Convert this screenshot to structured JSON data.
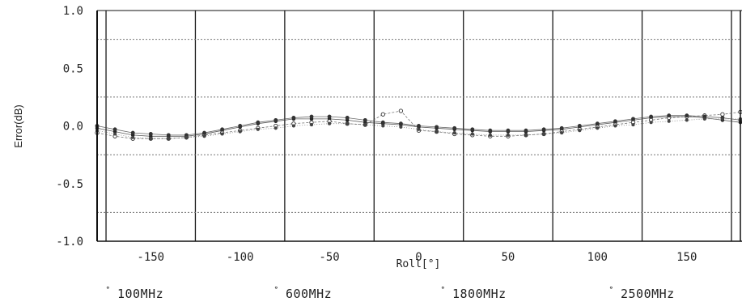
{
  "chart_data": {
    "type": "line",
    "title": "",
    "xlabel": "Roll[°]",
    "ylabel": "Error(dB)",
    "xlim": [
      -180,
      180
    ],
    "ylim": [
      -1.0,
      1.0
    ],
    "xticks": [
      -150,
      -100,
      -50,
      0,
      50,
      100,
      150
    ],
    "xtick_labels": [
      "-150",
      "-100",
      "-50",
      "0",
      "50",
      "100",
      "150"
    ],
    "yticks": [
      1.0,
      0.5,
      0.0,
      -0.5,
      -1.0
    ],
    "ytick_labels": [
      "1.0",
      "0.5",
      "0.0",
      "-0.5",
      "-1.0"
    ],
    "vertical_lines": [
      -175,
      -125,
      -75,
      -25,
      25,
      75,
      125,
      175
    ],
    "dashed_gridlines_y": [
      0.75,
      0.25,
      -0.25,
      -0.75
    ],
    "grid": true,
    "legend_position": "bottom",
    "x": [
      -180,
      -170,
      -160,
      -150,
      -140,
      -130,
      -120,
      -110,
      -100,
      -90,
      -80,
      -70,
      -60,
      -50,
      -40,
      -30,
      -20,
      -10,
      0,
      10,
      20,
      30,
      40,
      50,
      60,
      70,
      80,
      90,
      100,
      110,
      120,
      130,
      140,
      150,
      160,
      170,
      180
    ],
    "series": [
      {
        "name": "100MHz",
        "color": "#333333",
        "values": [
          -0.02,
          -0.05,
          -0.08,
          -0.09,
          -0.09,
          -0.09,
          -0.07,
          -0.04,
          -0.01,
          0.02,
          0.04,
          0.06,
          0.06,
          0.06,
          0.05,
          0.03,
          0.02,
          0.01,
          -0.01,
          -0.02,
          -0.03,
          -0.04,
          -0.05,
          -0.05,
          -0.05,
          -0.04,
          -0.03,
          -0.01,
          0.01,
          0.03,
          0.05,
          0.07,
          0.08,
          0.08,
          0.07,
          0.05,
          0.03
        ]
      },
      {
        "name": "600MHz",
        "color": "#555555",
        "values": [
          -0.06,
          -0.09,
          -0.11,
          -0.11,
          -0.11,
          -0.1,
          -0.08,
          -0.06,
          -0.04,
          -0.02,
          0.0,
          0.02,
          0.03,
          0.04,
          0.02,
          0.01,
          0.1,
          0.13,
          -0.04,
          -0.05,
          -0.07,
          -0.08,
          -0.09,
          -0.09,
          -0.08,
          -0.07,
          -0.05,
          -0.03,
          -0.01,
          0.01,
          0.03,
          0.05,
          0.07,
          0.08,
          0.09,
          0.1,
          0.12
        ]
      },
      {
        "name": "1800MHz",
        "color": "#444444",
        "values": [
          0.0,
          -0.03,
          -0.06,
          -0.07,
          -0.08,
          -0.08,
          -0.06,
          -0.03,
          0.0,
          0.03,
          0.05,
          0.07,
          0.08,
          0.08,
          0.07,
          0.05,
          0.03,
          0.02,
          0.0,
          -0.01,
          -0.02,
          -0.03,
          -0.04,
          -0.04,
          -0.04,
          -0.03,
          -0.02,
          0.0,
          0.02,
          0.04,
          0.06,
          0.08,
          0.09,
          0.09,
          0.08,
          0.07,
          0.05
        ]
      },
      {
        "name": "2500MHz",
        "color": "#666666",
        "values": [
          -0.04,
          -0.07,
          -0.1,
          -0.11,
          -0.11,
          -0.1,
          -0.09,
          -0.07,
          -0.05,
          -0.03,
          -0.02,
          0.0,
          0.01,
          0.02,
          0.02,
          0.01,
          0.0,
          -0.01,
          -0.03,
          -0.05,
          -0.06,
          -0.07,
          -0.08,
          -0.08,
          -0.08,
          -0.07,
          -0.06,
          -0.04,
          -0.02,
          0.0,
          0.01,
          0.03,
          0.04,
          0.05,
          0.06,
          0.06,
          0.06
        ]
      }
    ]
  }
}
